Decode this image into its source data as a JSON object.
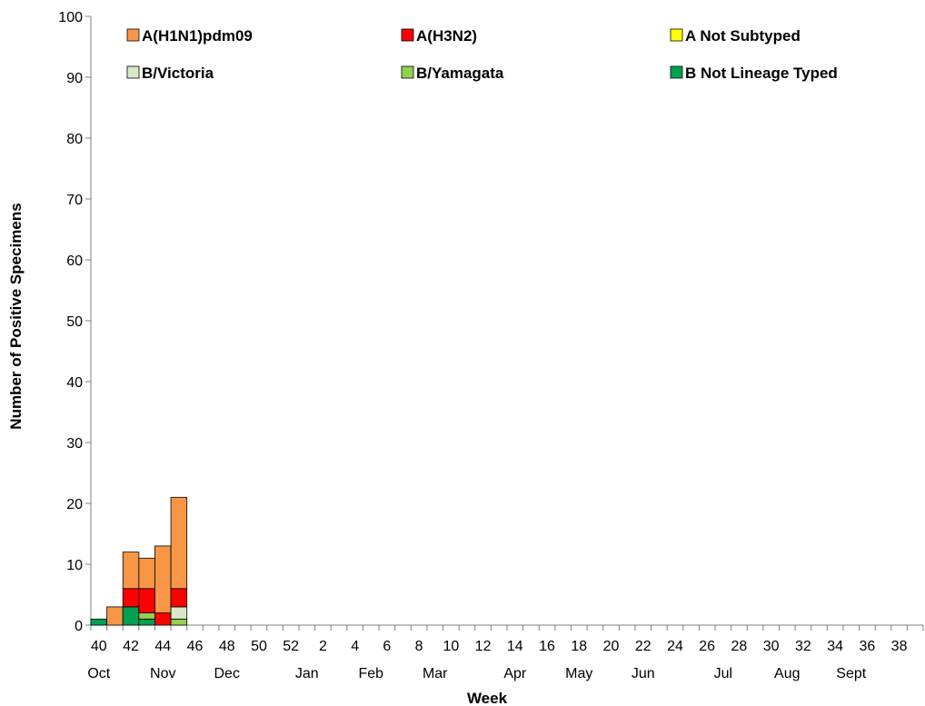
{
  "chart_data": {
    "type": "bar",
    "stacked": true,
    "title": "",
    "xlabel": "Week",
    "ylabel": "Number of Positive Specimens",
    "ylim": [
      0,
      100
    ],
    "yticks": [
      0,
      10,
      20,
      30,
      40,
      50,
      60,
      70,
      80,
      90,
      100
    ],
    "grid": false,
    "legend_position": "top",
    "weeks": [
      40,
      41,
      42,
      43,
      44,
      45,
      46,
      47,
      48,
      49,
      50,
      51,
      52,
      1,
      2,
      3,
      4,
      5,
      6,
      7,
      8,
      9,
      10,
      11,
      12,
      13,
      14,
      15,
      16,
      17,
      18,
      19,
      20,
      21,
      22,
      23,
      24,
      25,
      26,
      27,
      28,
      29,
      30,
      31,
      32,
      33,
      34,
      35,
      36,
      37,
      38,
      39
    ],
    "week_tick_labels": [
      "40",
      "42",
      "44",
      "46",
      "48",
      "50",
      "52",
      "2",
      "4",
      "6",
      "8",
      "10",
      "12",
      "14",
      "16",
      "18",
      "20",
      "22",
      "24",
      "26",
      "28",
      "30",
      "32",
      "34",
      "36",
      "38"
    ],
    "month_labels": [
      {
        "label": "Oct",
        "week": 40
      },
      {
        "label": "Nov",
        "week": 44
      },
      {
        "label": "Dec",
        "week": 48
      },
      {
        "label": "Jan",
        "week": 1
      },
      {
        "label": "Feb",
        "week": 5
      },
      {
        "label": "Mar",
        "week": 9
      },
      {
        "label": "Apr",
        "week": 14
      },
      {
        "label": "May",
        "week": 18
      },
      {
        "label": "Jun",
        "week": 22
      },
      {
        "label": "Jul",
        "week": 27
      },
      {
        "label": "Aug",
        "week": 31
      },
      {
        "label": "Sept",
        "week": 35
      }
    ],
    "series": [
      {
        "name": "B Not Lineage Typed",
        "color": "#00a050",
        "values": [
          1,
          0,
          3,
          1,
          0,
          0
        ]
      },
      {
        "name": "B/Yamagata",
        "color": "#92d050",
        "values": [
          0,
          0,
          0,
          1,
          0,
          1
        ]
      },
      {
        "name": "B/Victoria",
        "color": "#d8e8c8",
        "values": [
          0,
          0,
          0,
          0,
          0,
          2
        ]
      },
      {
        "name": "A Not Subtyped",
        "color": "#ffff00",
        "values": [
          0,
          0,
          0,
          0,
          0,
          0
        ]
      },
      {
        "name": "A(H3N2)",
        "color": "#ff0000",
        "values": [
          0,
          0,
          3,
          4,
          2,
          3
        ]
      },
      {
        "name": "A(H1N1)pdm09",
        "color": "#f79646",
        "values": [
          0,
          3,
          6,
          5,
          11,
          15
        ]
      }
    ],
    "legend_order": [
      "A(H1N1)pdm09",
      "A(H3N2)",
      "A Not Subtyped",
      "B/Victoria",
      "B/Yamagata",
      "B Not Lineage Typed"
    ]
  }
}
